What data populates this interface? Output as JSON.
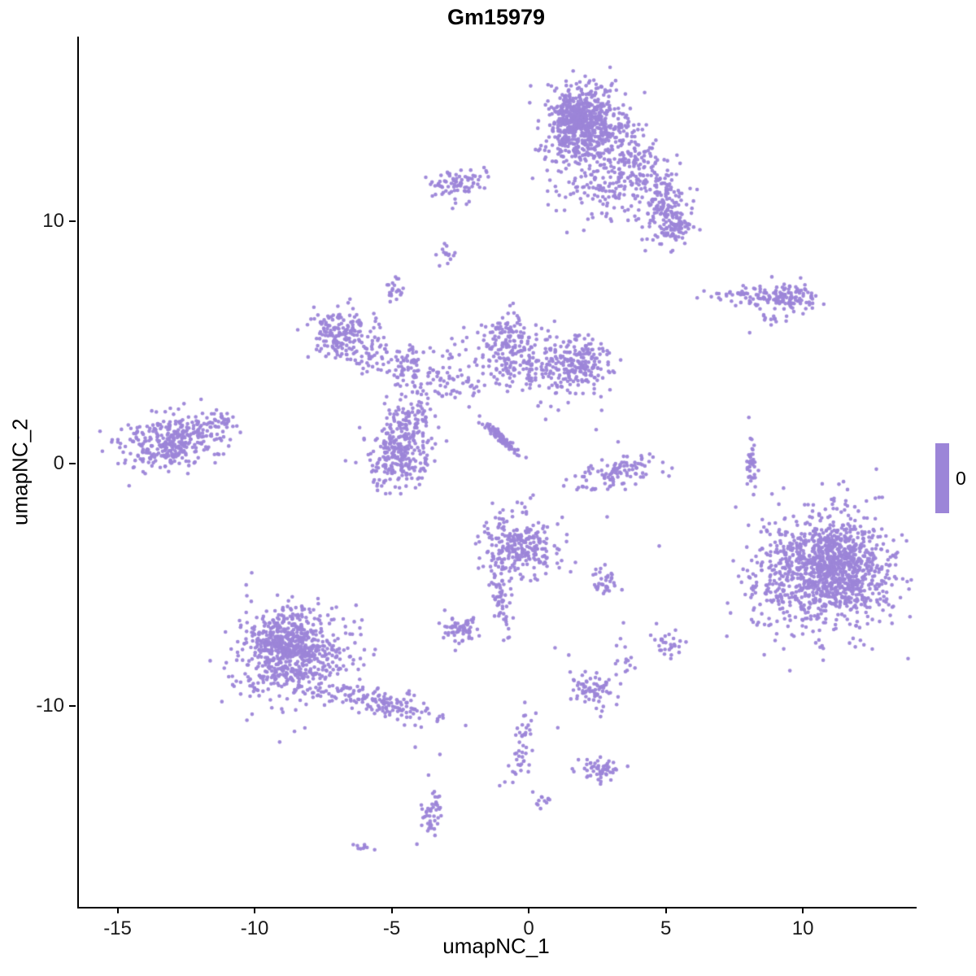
{
  "title": "Gm15979",
  "legend": {
    "label": "0",
    "color": "#9c85d8"
  },
  "chart_data": {
    "type": "scatter",
    "title": "Gm15979",
    "xlabel": "umapNC_1",
    "ylabel": "umapNC_2",
    "xlim": [
      -16.47,
      14.09
    ],
    "ylim": [
      -18.29,
      17.62
    ],
    "x_ticks": [
      -15,
      -10,
      -5,
      0,
      5,
      10
    ],
    "y_ticks": [
      -10,
      0,
      10
    ],
    "grid": false,
    "legend_position": "right",
    "legend_values": [
      "0"
    ],
    "point_color": "#9c85d8",
    "point_radius": 2.3,
    "description": "UMAP feature plot; all cells have expression value 0, rendered as purple point clusters",
    "clusters": [
      {
        "name": "top-main",
        "cx": 2.0,
        "cy": 13.9,
        "sx": 0.8,
        "sy": 0.85,
        "n": 520
      },
      {
        "name": "top-main-core",
        "cx": 1.7,
        "cy": 14.3,
        "sx": 0.45,
        "sy": 0.5,
        "n": 240
      },
      {
        "name": "top-right-arm",
        "cx": 3.6,
        "cy": 12.1,
        "sx": 0.5,
        "sy": 0.85,
        "n": 150,
        "rot": -25
      },
      {
        "name": "top-right-knot",
        "cx": 4.9,
        "cy": 10.7,
        "sx": 0.45,
        "sy": 0.8,
        "n": 170
      },
      {
        "name": "top-right-tip",
        "cx": 5.3,
        "cy": 9.6,
        "sx": 0.3,
        "sy": 0.35,
        "n": 55
      },
      {
        "name": "top-bridge",
        "cx": 2.2,
        "cy": 11.4,
        "sx": 0.95,
        "sy": 0.8,
        "n": 85
      },
      {
        "name": "upper-left-small",
        "cx": -2.6,
        "cy": 11.5,
        "sx": 0.5,
        "sy": 0.38,
        "n": 80
      },
      {
        "name": "tiny-upper-mid",
        "cx": -3.0,
        "cy": 8.6,
        "sx": 0.16,
        "sy": 0.2,
        "n": 14
      },
      {
        "name": "tiny-upper-left",
        "cx": -4.9,
        "cy": 7.2,
        "sx": 0.22,
        "sy": 0.26,
        "n": 22
      },
      {
        "name": "right-band",
        "cx": 8.2,
        "cy": 6.9,
        "sx": 0.85,
        "sy": 0.22,
        "n": 90
      },
      {
        "name": "right-band-knot",
        "cx": 9.6,
        "cy": 6.9,
        "sx": 0.38,
        "sy": 0.3,
        "n": 70
      },
      {
        "name": "right-band-dash",
        "cx": 8.8,
        "cy": 6.0,
        "sx": 0.3,
        "sy": 0.12,
        "n": 12
      },
      {
        "name": "mid-left",
        "cx": -7.0,
        "cy": 5.4,
        "sx": 0.58,
        "sy": 0.5,
        "n": 160
      },
      {
        "name": "mid-left-tail",
        "cx": -5.8,
        "cy": 4.6,
        "sx": 0.5,
        "sy": 0.38,
        "n": 55
      },
      {
        "name": "center-upper-small",
        "cx": -4.4,
        "cy": 4.0,
        "sx": 0.35,
        "sy": 0.5,
        "n": 60
      },
      {
        "name": "center-field",
        "cx": -3.0,
        "cy": 3.6,
        "sx": 0.75,
        "sy": 0.7,
        "n": 85
      },
      {
        "name": "center-dense-left",
        "cx": -0.8,
        "cy": 4.9,
        "sx": 0.5,
        "sy": 0.6,
        "n": 160
      },
      {
        "name": "center-dense-right",
        "cx": 1.8,
        "cy": 4.1,
        "sx": 0.55,
        "sy": 0.6,
        "n": 170
      },
      {
        "name": "center-bridge",
        "cx": 0.4,
        "cy": 3.9,
        "sx": 0.85,
        "sy": 0.65,
        "n": 120
      },
      {
        "name": "center-low",
        "cx": -4.8,
        "cy": 0.4,
        "sx": 0.62,
        "sy": 0.68,
        "n": 260
      },
      {
        "name": "center-low-neck",
        "cx": -4.4,
        "cy": 1.9,
        "sx": 0.4,
        "sy": 0.5,
        "n": 75
      },
      {
        "name": "diag-streak",
        "cx": -1.05,
        "cy": 1.05,
        "sx": 0.5,
        "sy": 0.07,
        "n": 90,
        "rot": -45
      },
      {
        "name": "far-left",
        "cx": -13.2,
        "cy": 0.9,
        "sx": 0.95,
        "sy": 0.55,
        "n": 330,
        "rot": 12
      },
      {
        "name": "far-left-tip",
        "cx": -11.3,
        "cy": 1.6,
        "sx": 0.4,
        "sy": 0.3,
        "n": 40
      },
      {
        "name": "mid-arc",
        "cx": 3.1,
        "cy": -0.4,
        "sx": 0.8,
        "sy": 0.35,
        "n": 105,
        "rot": 18
      },
      {
        "name": "thin-vertical",
        "cx": 8.1,
        "cy": -0.1,
        "sx": 0.13,
        "sy": 0.65,
        "n": 40
      },
      {
        "name": "big-right",
        "cx": 10.9,
        "cy": -4.4,
        "sx": 1.2,
        "sy": 1.25,
        "n": 800
      },
      {
        "name": "big-right-core",
        "cx": 11.3,
        "cy": -4.2,
        "sx": 0.7,
        "sy": 0.8,
        "n": 330
      },
      {
        "name": "big-right-fringe",
        "cx": 8.9,
        "cy": -4.6,
        "sx": 0.6,
        "sy": 1.2,
        "n": 120
      },
      {
        "name": "center-mid",
        "cx": -0.4,
        "cy": -3.5,
        "sx": 0.7,
        "sy": 0.75,
        "n": 270
      },
      {
        "name": "center-mid-strand",
        "cx": -1.1,
        "cy": -5.6,
        "sx": 0.15,
        "sy": 0.8,
        "n": 50,
        "rot": 8
      },
      {
        "name": "small-right-mid",
        "cx": 2.7,
        "cy": -4.9,
        "sx": 0.27,
        "sy": 0.3,
        "n": 35
      },
      {
        "name": "small-left-mid",
        "cx": -2.5,
        "cy": -6.8,
        "sx": 0.38,
        "sy": 0.3,
        "n": 60
      },
      {
        "name": "bottom-left-main",
        "cx": -8.6,
        "cy": -7.9,
        "sx": 1.05,
        "sy": 1.05,
        "n": 560
      },
      {
        "name": "bottom-left-core",
        "cx": -8.9,
        "cy": -7.5,
        "sx": 0.6,
        "sy": 0.6,
        "n": 240
      },
      {
        "name": "bottom-left-tail",
        "cx": -5.4,
        "cy": -9.9,
        "sx": 0.95,
        "sy": 0.28,
        "n": 140,
        "rot": -16
      },
      {
        "name": "small-bottom-right",
        "cx": 5.0,
        "cy": -7.4,
        "sx": 0.3,
        "sy": 0.26,
        "n": 28
      },
      {
        "name": "sparse-bottom-mid",
        "cx": 3.4,
        "cy": -8.0,
        "sx": 0.25,
        "sy": 0.55,
        "n": 16
      },
      {
        "name": "bottom-blob",
        "cx": 2.3,
        "cy": -9.3,
        "sx": 0.4,
        "sy": 0.36,
        "n": 70
      },
      {
        "name": "bottom-strand",
        "cx": -0.3,
        "cy": -11.6,
        "sx": 0.18,
        "sy": 0.75,
        "n": 45,
        "rot": -14
      },
      {
        "name": "bottom-small",
        "cx": 2.4,
        "cy": -12.6,
        "sx": 0.36,
        "sy": 0.26,
        "n": 55
      },
      {
        "name": "bottom-left-small",
        "cx": -3.6,
        "cy": -14.4,
        "sx": 0.2,
        "sy": 0.5,
        "n": 45
      },
      {
        "name": "bottom-tiny",
        "cx": 0.4,
        "cy": -13.9,
        "sx": 0.16,
        "sy": 0.2,
        "n": 12
      },
      {
        "name": "bottom-dash",
        "cx": -6.3,
        "cy": -15.9,
        "sx": 0.28,
        "sy": 0.09,
        "n": 10
      }
    ],
    "singles": [
      [
        8.0,
        5.4
      ],
      [
        2.6,
        2.2
      ],
      [
        3.2,
        0.9
      ],
      [
        3.4,
        0.3
      ],
      [
        2.4,
        1.4
      ],
      [
        2.8,
        -2.2
      ],
      [
        4.7,
        -3.4
      ],
      [
        4.6,
        -6.6
      ],
      [
        0.9,
        -7.6
      ],
      [
        1.4,
        -7.9
      ],
      [
        -4.2,
        -11.7
      ],
      [
        -3.3,
        -12.0
      ],
      [
        0.2,
        -10.3
      ],
      [
        1.0,
        -10.9
      ],
      [
        -0.2,
        -1.8
      ],
      [
        0.1,
        -1.3
      ]
    ]
  }
}
